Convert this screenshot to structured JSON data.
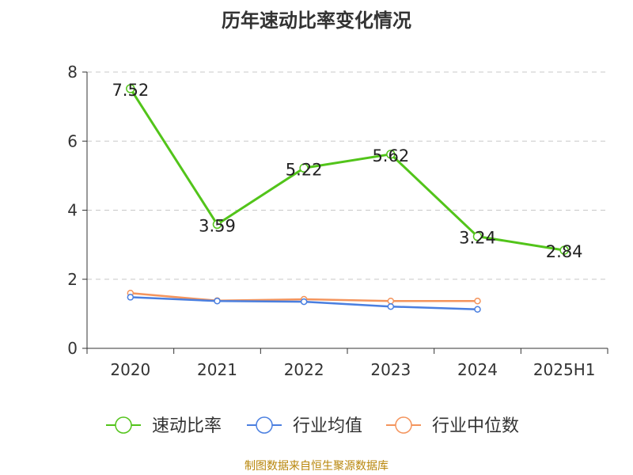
{
  "chart_data": {
    "type": "line",
    "title": "历年速动比率变化情况",
    "categories": [
      "2020",
      "2021",
      "2022",
      "2023",
      "2024",
      "2025H1"
    ],
    "ylim": [
      0,
      8
    ],
    "yticks": [
      "0",
      "2",
      "4",
      "6",
      "8"
    ],
    "grid": true,
    "legend_position": "bottom",
    "series": [
      {
        "name": "速动比率",
        "color": "#52c41a",
        "values": [
          7.52,
          3.59,
          5.22,
          5.62,
          3.24,
          2.84
        ],
        "labels": [
          "7.52",
          "3.59",
          "5.22",
          "5.62",
          "3.24",
          "2.84"
        ]
      },
      {
        "name": "行业均值",
        "color": "#4a7fe0",
        "values": [
          1.48,
          1.37,
          1.35,
          1.21,
          1.13,
          null
        ]
      },
      {
        "name": "行业中位数",
        "color": "#f4945c",
        "values": [
          1.6,
          1.38,
          1.42,
          1.37,
          1.37,
          null
        ]
      }
    ]
  },
  "footer": {
    "source": "制图数据来自恒生聚源数据库"
  }
}
